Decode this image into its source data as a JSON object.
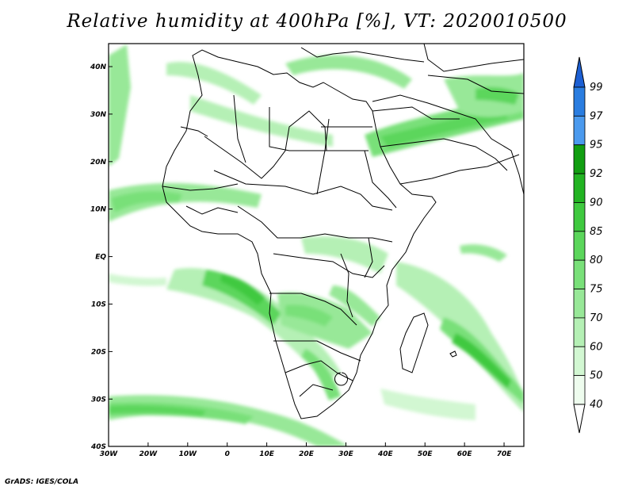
{
  "title": "Relative humidity at 400hPa [%], VT: 2020010500",
  "credit": "GrADS: IGES/COLA",
  "map": {
    "projection": "latlon",
    "lon_range": [
      -30,
      75
    ],
    "lat_range": [
      -40,
      45
    ],
    "x_ticks": [
      "30W",
      "20W",
      "10W",
      "0",
      "10E",
      "20E",
      "30E",
      "40E",
      "50E",
      "60E",
      "70E"
    ],
    "y_ticks": [
      "40N",
      "30N",
      "20N",
      "10N",
      "EQ",
      "10S",
      "20S",
      "30S",
      "40S"
    ],
    "boundaries": "country borders and coastlines in black"
  },
  "colorbar": {
    "levels": [
      "99",
      "97",
      "95",
      "92",
      "90",
      "85",
      "80",
      "75",
      "70",
      "60",
      "50",
      "40"
    ],
    "colors": [
      "#1c5fd3",
      "#2a7de0",
      "#4b9aee",
      "#119e11",
      "#22b422",
      "#3fc93f",
      "#5bd65b",
      "#79e079",
      "#98e898",
      "#b5f0b5",
      "#d2f7d2",
      "#eefcee"
    ],
    "overflow_color": "#1c5fd3"
  },
  "colors": {
    "frame": "#000000",
    "background": "#ffffff"
  }
}
